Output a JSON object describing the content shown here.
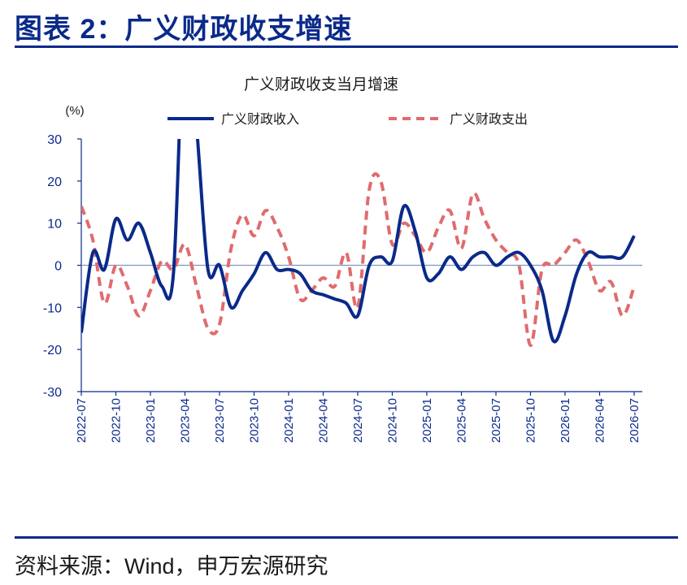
{
  "figure_title": "图表 2：广义财政收支增速",
  "source": "资料来源：Wind，申万宏源研究",
  "colors": {
    "income": "#0a2a8a",
    "expense": "#e06b6e",
    "axis": "#0a2a8a",
    "zero_line": "#7f93c9"
  },
  "chart_data": {
    "type": "line",
    "title": "广义财政收支当月增速",
    "ylabel": "(%)",
    "xlabel": "",
    "ylim": [
      -30,
      30
    ],
    "yticks": [
      -30,
      -20,
      -10,
      0,
      10,
      20,
      30
    ],
    "x_tick_labels": [
      "2022-07",
      "2022-10",
      "2023-01",
      "2023-04",
      "2023-07",
      "2023-10",
      "2024-01",
      "2024-04",
      "2024-07",
      "2024-10",
      "2025-01",
      "2025-04",
      "2025-07",
      "2025-10",
      "2026-01",
      "2026-04",
      "2026-07"
    ],
    "x": [
      "2022-07",
      "2022-08",
      "2022-09",
      "2022-10",
      "2022-11",
      "2022-12",
      "2023-01",
      "2023-02",
      "2023-03",
      "2023-04",
      "2023-05",
      "2023-06",
      "2023-07",
      "2023-08",
      "2023-09",
      "2023-10",
      "2023-11",
      "2023-12",
      "2024-01",
      "2024-02",
      "2024-03",
      "2024-04",
      "2024-05",
      "2024-06",
      "2024-07",
      "2024-08",
      "2024-09",
      "2024-10",
      "2024-11",
      "2024-12",
      "2025-01",
      "2025-02",
      "2025-03",
      "2025-04",
      "2025-05",
      "2025-06",
      "2025-07",
      "2025-08",
      "2025-09",
      "2025-10",
      "2025-11",
      "2025-12",
      "2026-01",
      "2026-02",
      "2026-03",
      "2026-04",
      "2026-05",
      "2026-06",
      "2026-07"
    ],
    "grid": false,
    "legend_position": "top",
    "series": [
      {
        "name": "广义财政收入",
        "style": "solid",
        "values": [
          -16,
          3,
          -1,
          11,
          6,
          10,
          3,
          -5,
          -2,
          60,
          33,
          -1,
          0,
          -10,
          -6,
          -2,
          3,
          -1,
          -1,
          -2,
          -6,
          -7,
          -8,
          -9,
          -12,
          0,
          2,
          1,
          14,
          8,
          -3,
          -2,
          2,
          -1,
          2,
          3,
          0,
          2,
          3,
          0,
          -6,
          -18,
          -12,
          -2,
          3,
          2,
          2,
          2,
          7
        ]
      },
      {
        "name": "广义财政支出",
        "style": "dashed",
        "values": [
          14,
          6,
          -9,
          0,
          -5,
          -12,
          -6,
          1,
          -1,
          5,
          -5,
          -15,
          -14,
          4,
          12,
          7,
          13,
          9,
          2,
          -8,
          -6,
          -3,
          -5,
          3,
          -10,
          18,
          20,
          5,
          10,
          7,
          3,
          9,
          13,
          4,
          17,
          11,
          6,
          3,
          0,
          -19,
          -1,
          0,
          3,
          6,
          1,
          -6,
          -4,
          -12,
          -5
        ]
      }
    ]
  }
}
